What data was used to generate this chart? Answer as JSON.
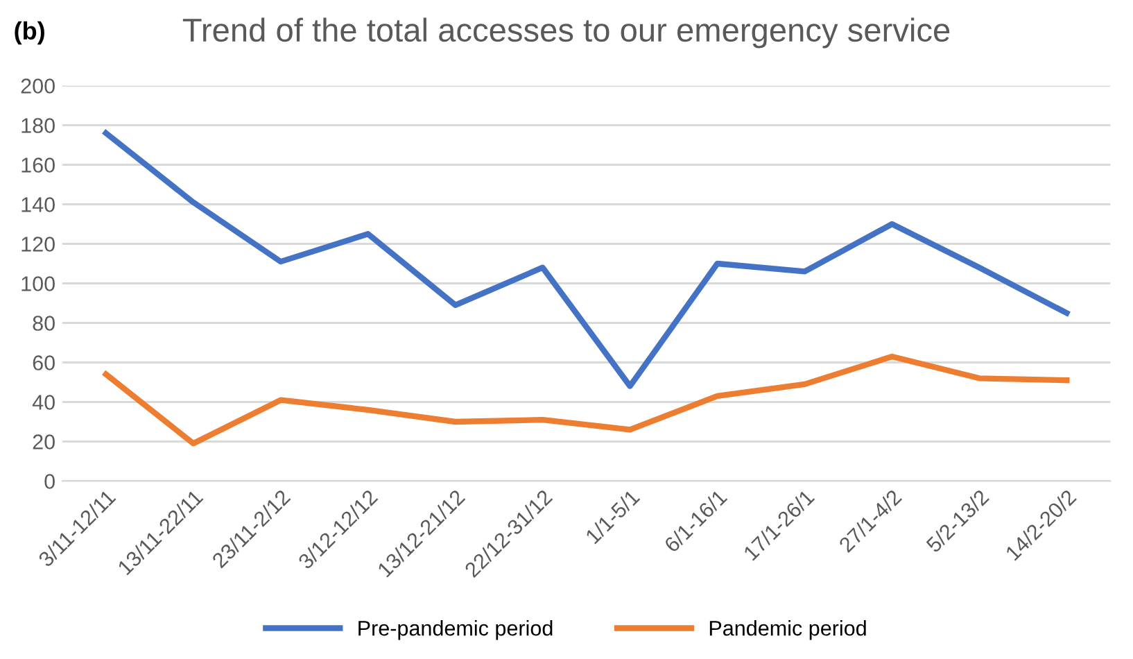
{
  "chart_data": {
    "type": "line",
    "title": "Trend of the total accesses to our emergency service",
    "annotations": [
      "(b)"
    ],
    "categories": [
      "3/11-12/11",
      "13/11-22/11",
      "23/11-2/12",
      "3/12-12/12",
      "13/12-21/12",
      "22/12-31/12",
      "1/1-5/1",
      "6/1-16/1",
      "17/1-26/1",
      "27/1-4/2",
      "5/2-13/2",
      "14/2-20/2"
    ],
    "series": [
      {
        "name": "Pre-pandemic period",
        "color": "#4472c4",
        "values": [
          176,
          141,
          111,
          125,
          89,
          108,
          48,
          110,
          106,
          130,
          108,
          85
        ]
      },
      {
        "name": "Pandemic period",
        "color": "#ed7d31",
        "values": [
          54,
          19,
          41,
          36,
          30,
          31,
          26,
          43,
          49,
          63,
          52,
          51
        ]
      }
    ],
    "ylim": [
      0,
      200
    ],
    "yticks": [
      0,
      20,
      40,
      60,
      80,
      100,
      120,
      140,
      160,
      180,
      200
    ],
    "grid": "y",
    "legend": "bottom",
    "marker": "none",
    "line_style": "solid"
  }
}
